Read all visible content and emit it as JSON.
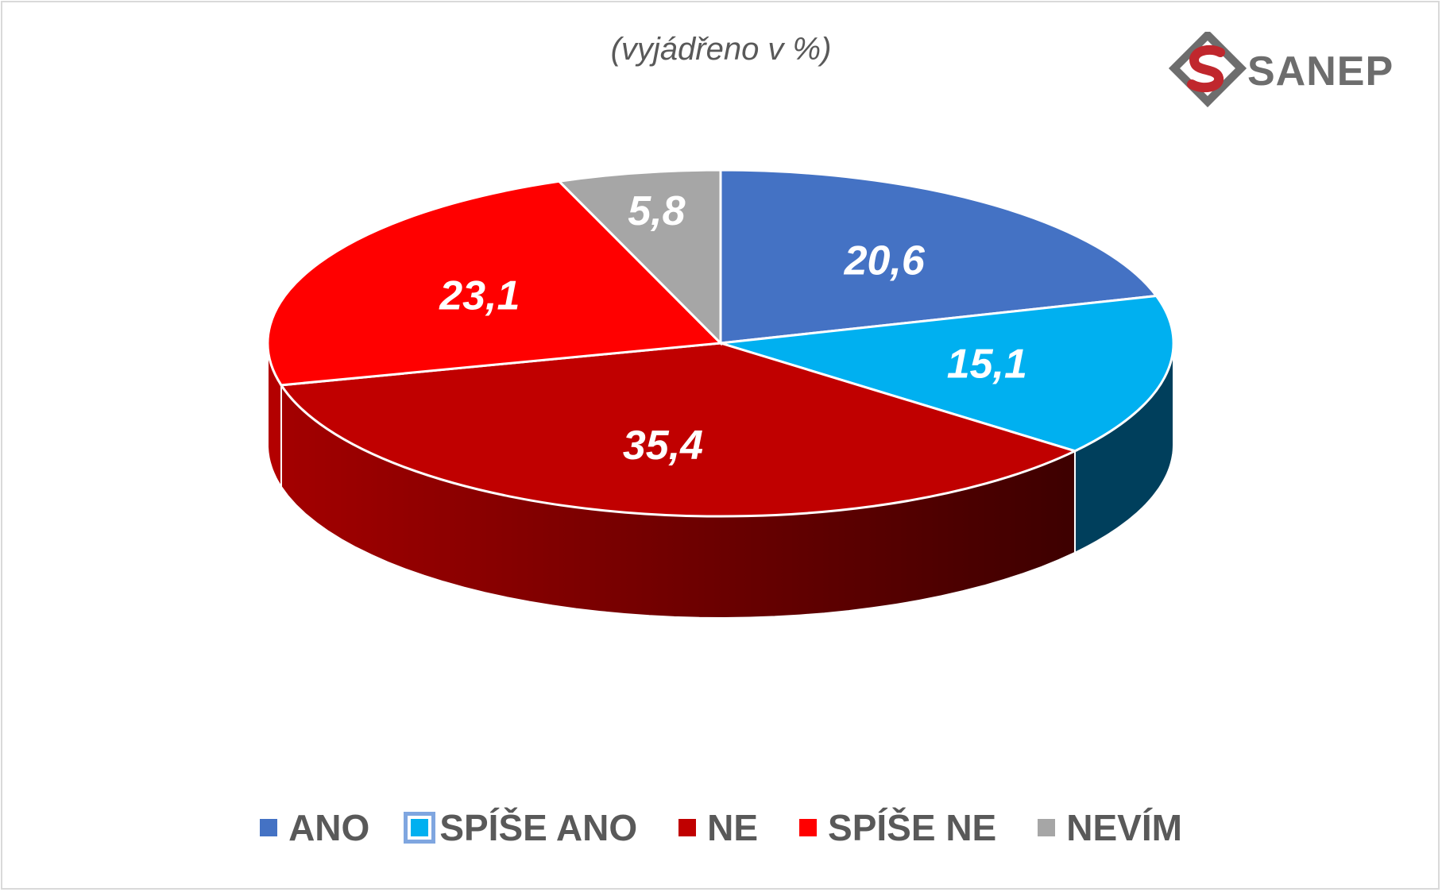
{
  "subtitle": "(vyjádřeno v %)",
  "logo": {
    "text": "SANEP",
    "mark_colors": [
      "#c0272d",
      "#6d6d6d"
    ]
  },
  "chart_data": {
    "type": "pie",
    "style": "3d",
    "subtitle": "(vyjádřeno v %)",
    "legend_position": "bottom",
    "slices": [
      {
        "label": "ANO",
        "value": 20.6,
        "value_label": "20,6",
        "color": "#4472c4",
        "side_color": "#2c4f8c"
      },
      {
        "label": "SPÍŠE ANO",
        "value": 15.1,
        "value_label": "15,1",
        "color": "#00b0f0",
        "side_color": "#003f5c"
      },
      {
        "label": "NE",
        "value": 35.4,
        "value_label": "35,4",
        "color": "#c00000",
        "side_color": "#8b0000"
      },
      {
        "label": "SPÍŠE NE",
        "value": 23.1,
        "value_label": "23,1",
        "color": "#ff0000",
        "side_color": "#b30000"
      },
      {
        "label": "NEVÍM",
        "value": 5.8,
        "value_label": "5,8",
        "color": "#a6a6a6",
        "side_color": "#6f6f6f"
      }
    ]
  }
}
